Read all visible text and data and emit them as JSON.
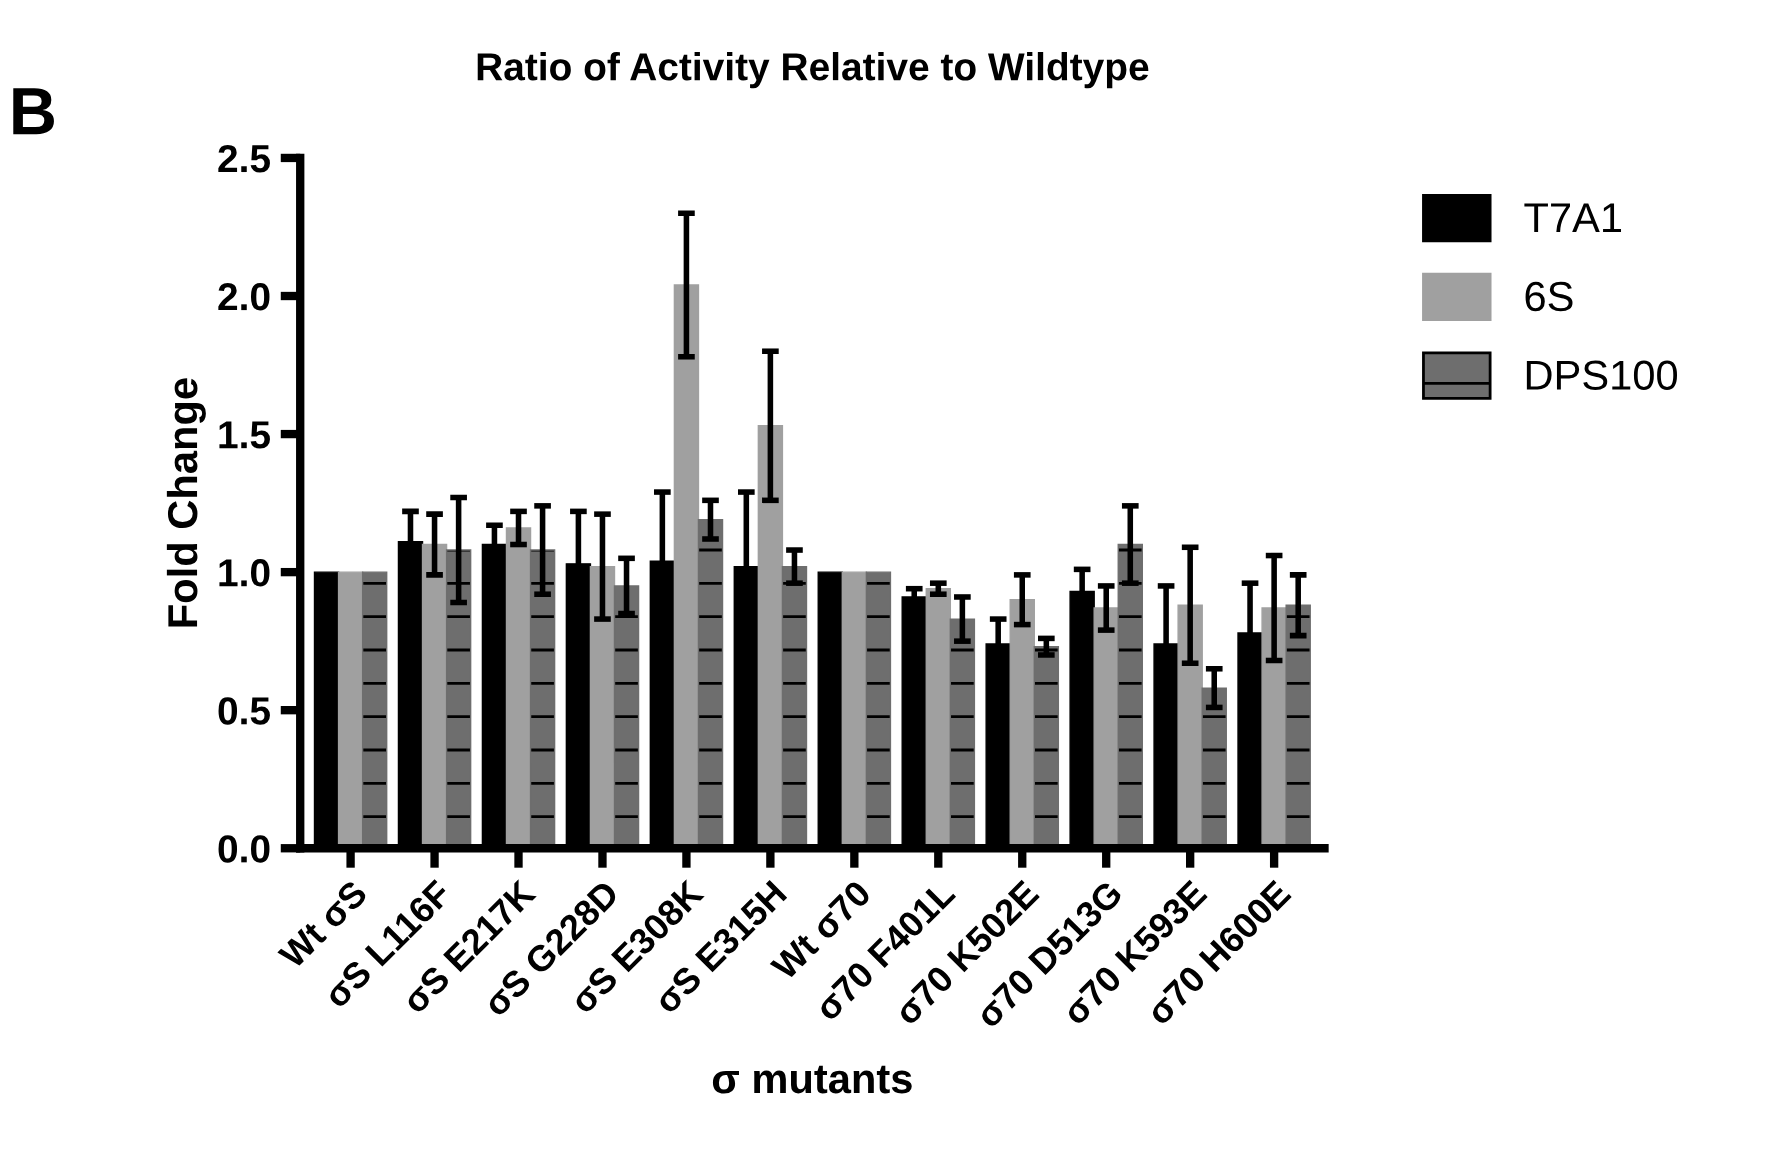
{
  "chart_data": {
    "type": "bar",
    "title": "Ratio of Activity Relative to Wildtype",
    "xlabel": "σ mutants",
    "ylabel": "Fold Change",
    "annotations": [
      "B"
    ],
    "categories": [
      "Wt σS",
      "σS L116F",
      "σS E217K",
      "σS G228D",
      "σS E308K",
      "σS E315H",
      "Wt σ70",
      "σ70 F401L",
      "σ70 K502E",
      "σ70 D513G",
      "σ70 K593E",
      "σ70 H600E"
    ],
    "series": [
      {
        "name": "T7A1",
        "color": "#000000",
        "values": [
          1.0,
          1.11,
          1.1,
          1.03,
          1.04,
          1.02,
          1.0,
          0.91,
          0.74,
          0.93,
          0.74,
          0.78
        ],
        "errors": [
          null,
          0.11,
          0.07,
          0.19,
          0.25,
          0.27,
          null,
          0.03,
          0.09,
          0.08,
          0.21,
          0.18
        ]
      },
      {
        "name": "6S",
        "color": "#a0a0a0",
        "values": [
          1.0,
          1.1,
          1.16,
          1.02,
          2.04,
          1.53,
          1.0,
          0.94,
          0.9,
          0.87,
          0.88,
          0.87
        ],
        "errors": [
          null,
          0.11,
          0.06,
          0.19,
          0.26,
          0.27,
          null,
          0.02,
          0.09,
          0.08,
          0.21,
          0.19
        ]
      },
      {
        "name": "DPS100",
        "color": "#6e6e6e",
        "values": [
          1.0,
          1.08,
          1.08,
          0.95,
          1.19,
          1.02,
          1.0,
          0.83,
          0.73,
          1.1,
          0.58,
          0.88
        ],
        "errors": [
          null,
          0.19,
          0.16,
          0.1,
          0.07,
          0.06,
          null,
          0.08,
          0.03,
          0.14,
          0.07,
          0.11
        ]
      }
    ],
    "ylim": [
      0,
      2.5
    ],
    "yticks": [
      {
        "value": 0,
        "label": "0.0"
      },
      {
        "value": 0.5,
        "label": "0.5"
      },
      {
        "value": 1,
        "label": "1.0"
      },
      {
        "value": 1.5,
        "label": "1.5"
      },
      {
        "value": 2,
        "label": "2.0"
      },
      {
        "value": 2.5,
        "label": "2.5"
      }
    ],
    "grid": false,
    "legend": "right"
  }
}
